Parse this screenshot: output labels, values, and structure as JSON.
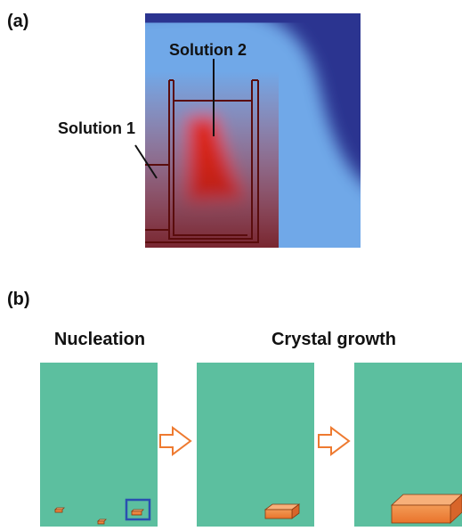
{
  "panel_a": {
    "label": "(a)",
    "annotations": [
      "Solution 2",
      "Solution 1"
    ]
  },
  "panel_b": {
    "label": "(b)",
    "stages": [
      "Nucleation",
      "Crystal growth"
    ]
  }
}
